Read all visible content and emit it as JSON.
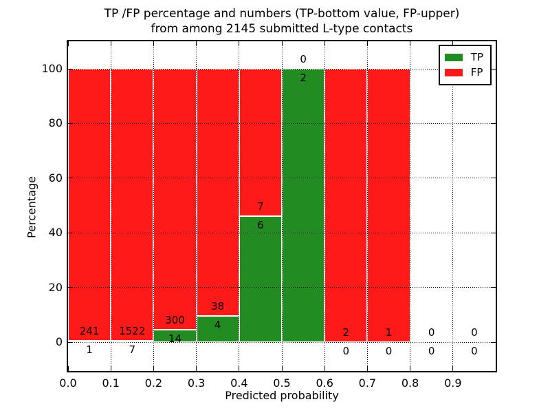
{
  "chart_data": {
    "type": "bar",
    "stacked": true,
    "normalized": "percent",
    "title": "TP /FP percentage and numbers (TP-bottom value, FP-upper) from among 2145 submitted L-type contacts",
    "title_lines": [
      "TP /FP percentage and numbers (TP-bottom value, FP-upper)",
      "from among 2145 submitted L-type contacts"
    ],
    "xlabel": "Predicted probability",
    "ylabel": "Percentage",
    "total_submitted": 2145,
    "bin_edges": [
      0.0,
      0.1,
      0.2,
      0.3,
      0.4,
      0.5,
      0.6,
      0.7,
      0.8,
      0.9,
      1.0
    ],
    "series": [
      {
        "name": "TP",
        "color": "#228b22",
        "counts": [
          1,
          7,
          14,
          4,
          6,
          2,
          0,
          0,
          0,
          0
        ]
      },
      {
        "name": "FP",
        "color": "#ff1a1a",
        "counts": [
          241,
          1522,
          300,
          38,
          7,
          0,
          2,
          1,
          0,
          0
        ]
      }
    ],
    "bar_label_rule": "TP count below segment boundary, FP count above segment boundary",
    "xtick_labels": [
      "0.0",
      "0.1",
      "0.2",
      "0.3",
      "0.4",
      "0.5",
      "0.6",
      "0.7",
      "0.8",
      "0.9"
    ],
    "ytick_values": [
      0,
      20,
      40,
      60,
      80,
      100
    ],
    "ytick_labels": [
      "0",
      "20",
      "40",
      "60",
      "80",
      "100"
    ],
    "xlim": [
      0.0,
      1.0
    ],
    "ylim": [
      -11,
      110
    ],
    "grid": true,
    "grid_style": "dotted",
    "legend_position": "upper right"
  }
}
